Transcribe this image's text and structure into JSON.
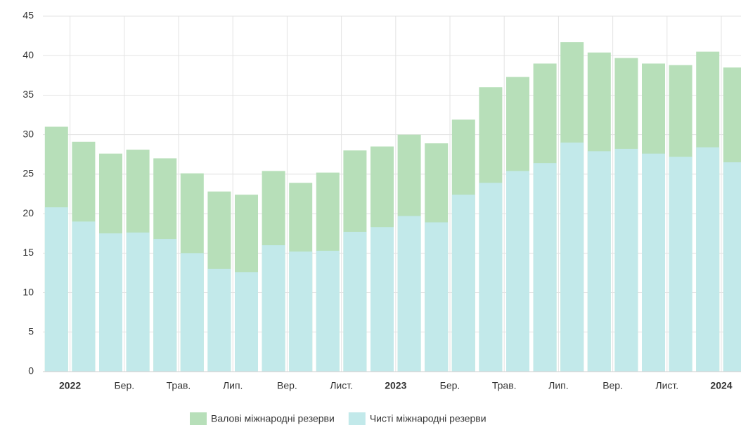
{
  "chart_data": {
    "type": "bar",
    "categories": [
      "2022",
      null,
      "Бер.",
      null,
      "Трав.",
      null,
      "Лип.",
      null,
      "Вер.",
      null,
      "Лист.",
      null,
      "2023",
      null,
      "Бер.",
      null,
      "Трав.",
      null,
      "Лип.",
      null,
      "Вер.",
      null,
      "Лист.",
      null,
      "2024",
      null
    ],
    "series": [
      {
        "name": "Валові міжнародні резерви",
        "color": "#b7dfb9",
        "values": [
          31,
          29.1,
          27.6,
          28.1,
          27,
          25.1,
          22.8,
          22.4,
          25.4,
          23.9,
          25.2,
          28,
          28.5,
          30,
          28.9,
          31.9,
          36,
          37.3,
          39,
          41.7,
          40.4,
          39.7,
          39,
          38.8,
          40.5,
          38.5
        ]
      },
      {
        "name": "Чисті міжнародні резерви",
        "color": "#c2e9ea",
        "values": [
          20.8,
          19,
          17.5,
          17.6,
          16.8,
          15,
          13,
          12.6,
          16,
          15.2,
          15.3,
          17.7,
          18.3,
          19.7,
          18.9,
          22.4,
          23.9,
          25.4,
          26.4,
          29,
          27.9,
          28.2,
          27.6,
          27.2,
          28.4,
          26.5
        ]
      }
    ],
    "ylim": [
      0,
      45
    ],
    "yticks": [
      0,
      5,
      10,
      15,
      20,
      25,
      30,
      35,
      40,
      45
    ],
    "grid": true,
    "legend": "bottom"
  }
}
